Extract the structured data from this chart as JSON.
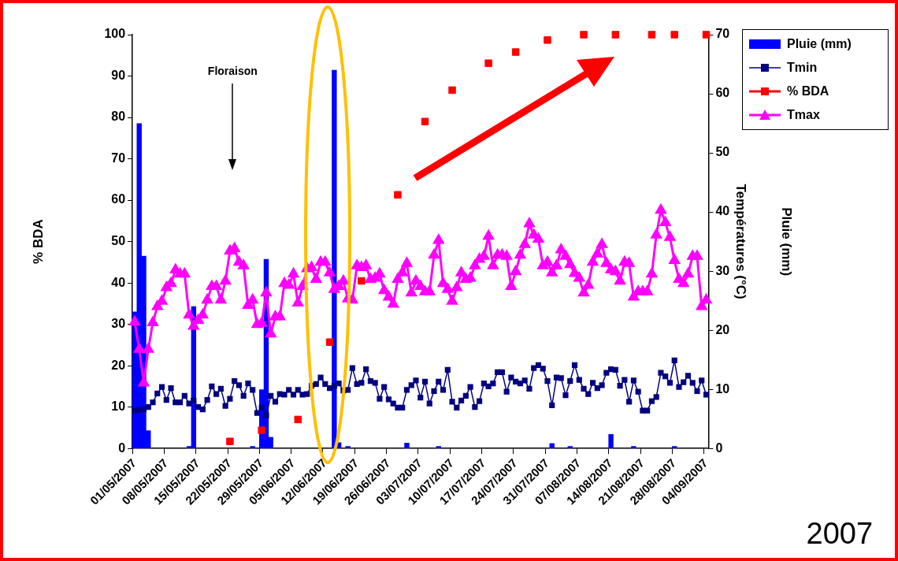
{
  "chart_data": {
    "type": "line",
    "categories": [
      "01/05/2007",
      null,
      null,
      null,
      null,
      null,
      null,
      "08/05/2007",
      null,
      null,
      null,
      null,
      null,
      null,
      "15/05/2007",
      null,
      null,
      null,
      null,
      null,
      null,
      "22/05/2007",
      null,
      null,
      null,
      null,
      null,
      null,
      "29/05/2007",
      null,
      null,
      null,
      null,
      null,
      null,
      "05/06/2007",
      null,
      null,
      null,
      null,
      null,
      null,
      "12/06/2007",
      null,
      null,
      null,
      null,
      null,
      null,
      "19/06/2007",
      null,
      null,
      null,
      null,
      null,
      null,
      "26/06/2007",
      null,
      null,
      null,
      null,
      null,
      null,
      "03/07/2007",
      null,
      null,
      null,
      null,
      null,
      null,
      "10/07/2007",
      null,
      null,
      null,
      null,
      null,
      null,
      "17/07/2007",
      null,
      null,
      null,
      null,
      null,
      null,
      "24/07/2007",
      null,
      null,
      null,
      null,
      null,
      null,
      "31/07/2007",
      null,
      null,
      null,
      null,
      null,
      null,
      "07/08/2007",
      null,
      null,
      null,
      null,
      null,
      null,
      "14/08/2007",
      null,
      null,
      null,
      null,
      null,
      null,
      "21/08/2007",
      null,
      null,
      null,
      null,
      null,
      null,
      "28/08/2007",
      null,
      null,
      null,
      null,
      null,
      null,
      "04/09/2007"
    ],
    "series": [
      {
        "name": "Pluie (mm)",
        "type": "bar",
        "axis": "y",
        "color": "#0000ff",
        "values": [
          33,
          78.5,
          46.5,
          4.3,
          null,
          null,
          null,
          null,
          null,
          null,
          null,
          null,
          0.5,
          34.3,
          null,
          null,
          null,
          null,
          null,
          null,
          null,
          null,
          null,
          null,
          null,
          null,
          0.5,
          null,
          14.2,
          45.7,
          2.7,
          null,
          null,
          null,
          null,
          null,
          null,
          null,
          null,
          null,
          null,
          null,
          null,
          null,
          91.4,
          1.4,
          null,
          0.5,
          null,
          null,
          null,
          null,
          null,
          null,
          null,
          null,
          null,
          null,
          null,
          null,
          1.3,
          null,
          null,
          null,
          null,
          null,
          null,
          0.5,
          null,
          null,
          null,
          null,
          null,
          null,
          null,
          null,
          null,
          null,
          null,
          null,
          null,
          null,
          null,
          null,
          null,
          null,
          null,
          null,
          null,
          null,
          null,
          null,
          1.2,
          null,
          null,
          null,
          0.5,
          null,
          null,
          null,
          null,
          null,
          null,
          null,
          null,
          3.4,
          null,
          null,
          null,
          null,
          0.5,
          null,
          null,
          null,
          null,
          null,
          null,
          null,
          null,
          0.5,
          null,
          null,
          null,
          null,
          null,
          null,
          null
        ]
      },
      {
        "name": "Tmin",
        "axis": "y2",
        "color": "#000080",
        "marker": "square",
        "values": [
          6.4,
          6.5,
          6.6,
          7.0,
          7.8,
          9.3,
          10.4,
          8.2,
          10.2,
          7.8,
          7.8,
          8.9,
          7.6,
          8.1,
          7.0,
          6.6,
          8.2,
          10.5,
          9.2,
          10.1,
          7.2,
          8.4,
          11.4,
          10.7,
          8.9,
          11.0,
          9.9,
          6.0,
          6.9,
          5.6,
          8.9,
          7.9,
          9.2,
          9.1,
          9.9,
          9.1,
          9.9,
          9.1,
          9.2,
          10.6,
          10.9,
          12.0,
          10.9,
          10.2,
          10.6,
          11.0,
          9.8,
          9.9,
          13.6,
          10.9,
          11.1,
          13.4,
          11.4,
          11.1,
          8.4,
          10.4,
          8.3,
          7.6,
          6.9,
          6.9,
          9.9,
          10.7,
          11.5,
          8.6,
          11.3,
          7.6,
          9.7,
          11.3,
          9.9,
          13.3,
          7.9,
          6.9,
          8.1,
          8.9,
          10.4,
          7.0,
          8.0,
          11.0,
          10.5,
          11.0,
          12.9,
          12.9,
          9.6,
          12.0,
          11.3,
          11.0,
          11.5,
          10.1,
          13.6,
          14.1,
          13.5,
          11.4,
          7.3,
          12.0,
          11.9,
          9.0,
          11.4,
          14.1,
          11.6,
          10.1,
          9.2,
          11.1,
          10.2,
          10.7,
          12.8,
          13.4,
          13.3,
          10.6,
          11.6,
          7.9,
          11.5,
          9.6,
          6.4,
          6.4,
          8.0,
          8.7,
          12.8,
          12.2,
          11.1,
          14.9,
          10.4,
          11.2,
          12.3,
          11.1,
          9.7,
          11.5,
          9.1
        ]
      },
      {
        "name": "% BDA",
        "type": "scatter",
        "axis": "y",
        "color": "#ff0000",
        "marker": "square",
        "values": [
          null,
          null,
          null,
          null,
          null,
          null,
          null,
          null,
          null,
          null,
          null,
          null,
          null,
          null,
          null,
          null,
          null,
          null,
          null,
          null,
          null,
          1.7,
          null,
          null,
          null,
          null,
          null,
          null,
          4.4,
          null,
          null,
          null,
          null,
          null,
          null,
          null,
          7.0,
          null,
          null,
          null,
          null,
          null,
          null,
          25.7,
          null,
          null,
          null,
          null,
          null,
          null,
          40.5,
          null,
          null,
          null,
          null,
          null,
          null,
          null,
          61.3,
          null,
          null,
          null,
          null,
          null,
          79.0,
          null,
          null,
          null,
          null,
          null,
          86.6,
          null,
          null,
          null,
          null,
          null,
          null,
          null,
          93.1,
          null,
          null,
          null,
          null,
          null,
          95.8,
          null,
          null,
          null,
          null,
          null,
          null,
          98.7,
          null,
          null,
          null,
          null,
          null,
          null,
          null,
          100,
          null,
          null,
          null,
          null,
          null,
          null,
          100,
          null,
          null,
          null,
          null,
          null,
          null,
          null,
          100,
          null,
          null,
          null,
          null,
          100,
          null,
          null,
          null,
          null,
          null,
          null,
          100
        ]
      },
      {
        "name": "Tmax",
        "axis": "y2",
        "color": "#ff00ff",
        "marker": "triangle",
        "values": [
          21.4,
          16.8,
          11.1,
          16.8,
          21.3,
          24.0,
          24.9,
          27.2,
          27.9,
          30.2,
          29.5,
          29.5,
          22.6,
          20.7,
          21.7,
          22.6,
          25.1,
          27.4,
          27.4,
          25.1,
          28.3,
          33.4,
          33.8,
          31.5,
          30.9,
          24.2,
          25.1,
          21.0,
          21.2,
          26.3,
          19.4,
          22.3,
          22.3,
          27.9,
          27.6,
          29.5,
          24.6,
          27.4,
          30.4,
          30.6,
          28.6,
          31.5,
          31.5,
          29.7,
          26.9,
          27.4,
          28.3,
          25.3,
          25.1,
          30.9,
          30.6,
          30.9,
          28.6,
          28.8,
          29.5,
          26.7,
          25.6,
          24.4,
          28.6,
          29.7,
          31.3,
          26.3,
          28.3,
          27.4,
          26.5,
          26.5,
          32.7,
          35.2,
          27.9,
          26.9,
          24.9,
          27.2,
          29.7,
          28.6,
          28.8,
          30.9,
          32.0,
          32.5,
          35.9,
          30.9,
          32.7,
          32.7,
          32.5,
          27.4,
          29.9,
          32.7,
          34.5,
          38.0,
          36.1,
          35.4,
          30.9,
          31.5,
          29.7,
          30.9,
          33.6,
          32.5,
          31.1,
          29.6,
          28.8,
          26.3,
          27.6,
          31.5,
          32.9,
          34.5,
          31.3,
          30.2,
          29.9,
          28.3,
          31.5,
          31.3,
          25.6,
          26.5,
          26.5,
          26.5,
          29.5,
          36.1,
          40.3,
          38.2,
          35.7,
          31.8,
          28.6,
          27.9,
          29.5,
          32.5,
          32.5,
          24.0,
          25.1
        ]
      }
    ],
    "ylabel": "% BDA",
    "y2label": "Températures (°C)",
    "y3label": "Pluie (mm)",
    "ylim": [
      0,
      100
    ],
    "yticks": [
      0,
      10,
      20,
      30,
      40,
      50,
      60,
      70,
      80,
      90,
      100
    ],
    "y2lim": [
      0,
      70
    ],
    "y2ticks": [
      0,
      10,
      20,
      30,
      40,
      50,
      60,
      70
    ],
    "grid": false,
    "legend": "top right",
    "annotations": [
      "Floraison",
      "2007"
    ]
  }
}
